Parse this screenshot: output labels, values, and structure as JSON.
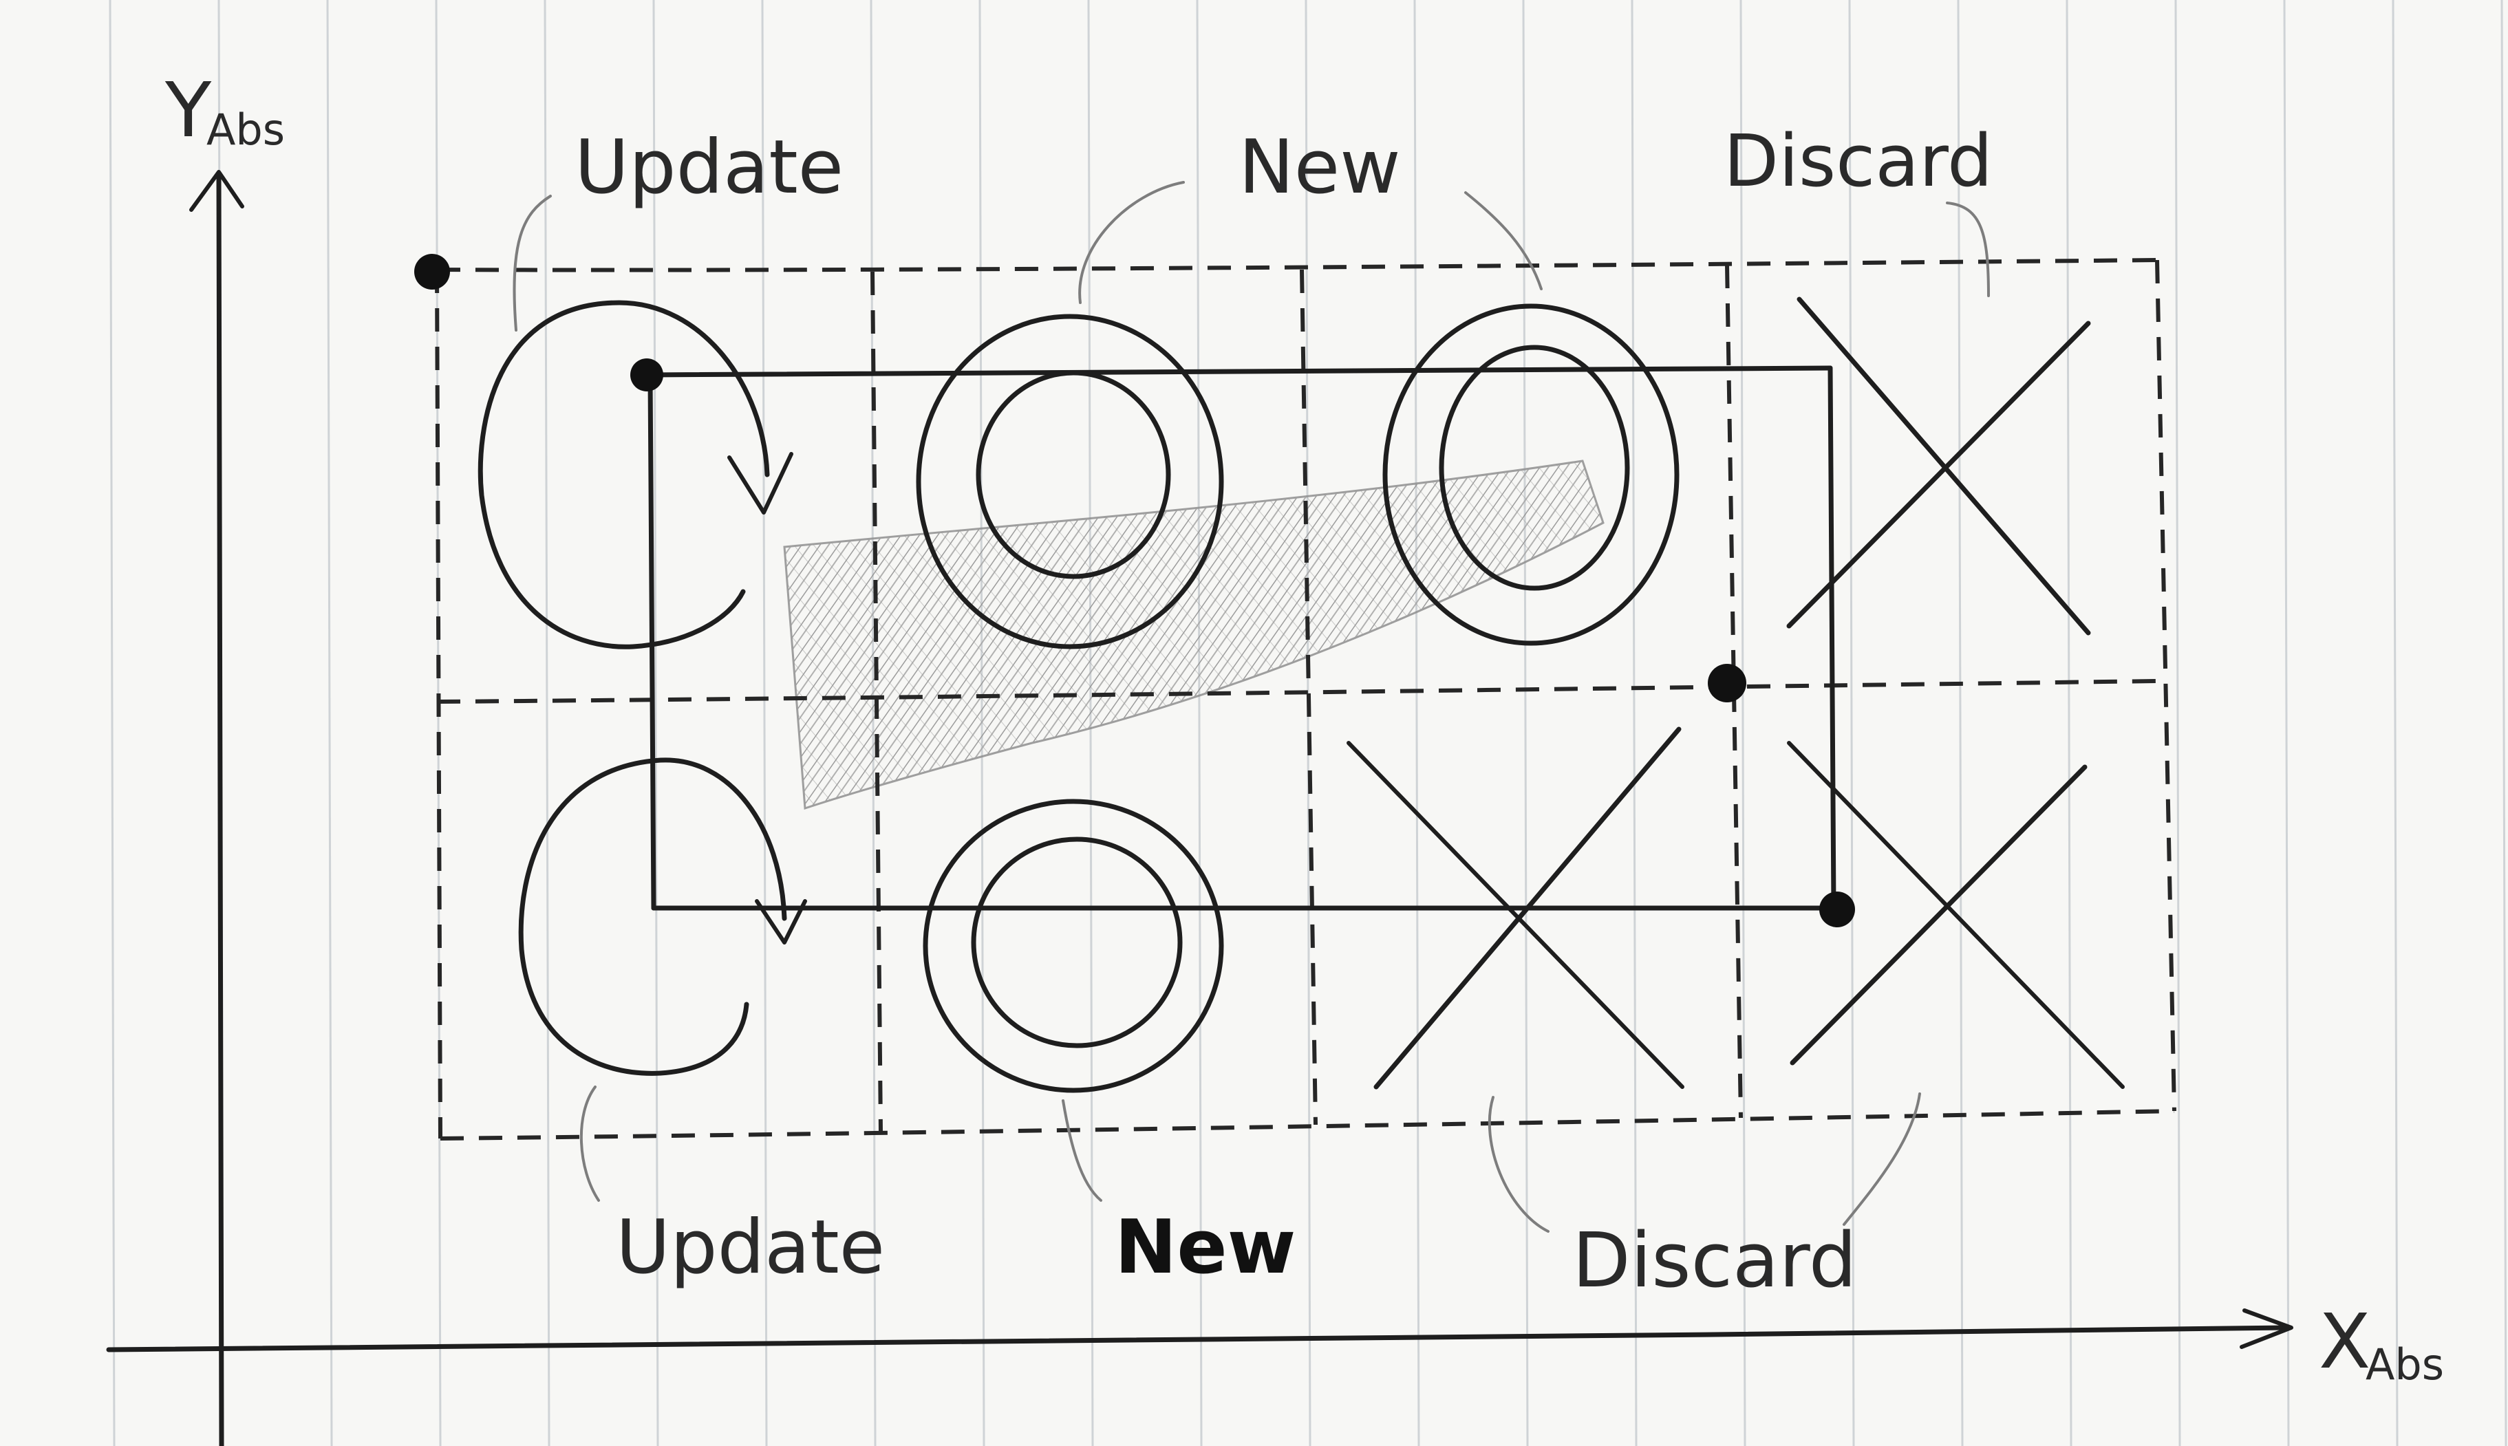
{
  "axes": {
    "y_label_main": "Y",
    "y_label_sub": "Abs",
    "x_label_main": "X",
    "x_label_sub": "Abs"
  },
  "labels": {
    "top": [
      "Update",
      "New",
      "Discard"
    ],
    "bottom": [
      "Update",
      "New",
      "Discard"
    ]
  },
  "grid": {
    "rows": 2,
    "cols": 4,
    "cells": [
      [
        "update",
        "new",
        "new",
        "discard"
      ],
      [
        "update",
        "new",
        "discard",
        "discard"
      ]
    ]
  },
  "colors": {
    "ink": "#1e1e1e",
    "pencil": "#7d7d7d",
    "paper": "#f7f7f5",
    "grid_lines": "#cfd3d6"
  }
}
